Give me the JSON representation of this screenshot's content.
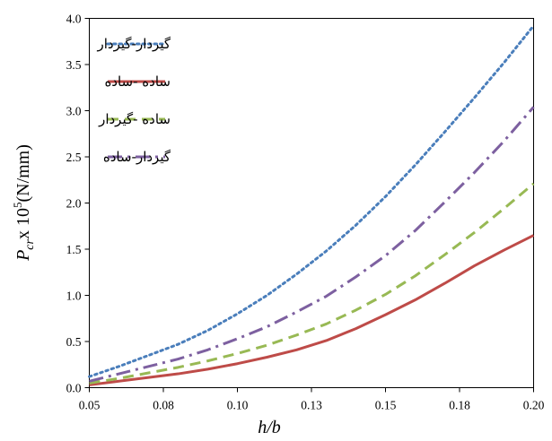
{
  "chart_data": {
    "type": "line",
    "title": "",
    "xlabel": "h/b",
    "ylabel": "Pcr x 10⁵(N/mm)",
    "ylabel_parts": {
      "symbol": "P",
      "subscript": "cr",
      "multiplier": "x 10",
      "exponent": "5",
      "unit": "(N/mm)"
    },
    "xlim": [
      0.05,
      0.2
    ],
    "ylim": [
      0.0,
      4.0
    ],
    "x_ticks": [
      "0.05",
      "0.08",
      "0.10",
      "0.13",
      "0.15",
      "0.18",
      "0.20"
    ],
    "x_tick_values": [
      0.05,
      0.075,
      0.1,
      0.125,
      0.15,
      0.175,
      0.2
    ],
    "y_ticks": [
      "0.0",
      "0.5",
      "1.0",
      "1.5",
      "2.0",
      "2.5",
      "3.0",
      "3.5",
      "4.0"
    ],
    "y_tick_values": [
      0.0,
      0.5,
      1.0,
      1.5,
      2.0,
      2.5,
      3.0,
      3.5,
      4.0
    ],
    "grid": false,
    "legend_position": "top-left",
    "x": [
      0.05,
      0.06,
      0.07,
      0.08,
      0.09,
      0.1,
      0.11,
      0.12,
      0.13,
      0.14,
      0.15,
      0.16,
      0.17,
      0.18,
      0.19,
      0.2
    ],
    "series": [
      {
        "name": "گیردار-گیردار",
        "color": "#4a7ebb",
        "dash": "dotted",
        "values": [
          0.12,
          0.23,
          0.35,
          0.47,
          0.62,
          0.8,
          1.0,
          1.23,
          1.48,
          1.76,
          2.07,
          2.41,
          2.77,
          3.14,
          3.52,
          3.92
        ]
      },
      {
        "name": "ساده -ساده",
        "color": "#be4b48",
        "dash": "solid",
        "values": [
          0.03,
          0.07,
          0.11,
          0.15,
          0.2,
          0.26,
          0.33,
          0.41,
          0.51,
          0.64,
          0.79,
          0.95,
          1.13,
          1.32,
          1.49,
          1.65
        ]
      },
      {
        "name": "ساده -گیردار",
        "color": "#98b954",
        "dash": "dashed",
        "values": [
          0.05,
          0.1,
          0.16,
          0.22,
          0.29,
          0.37,
          0.46,
          0.57,
          0.69,
          0.84,
          1.01,
          1.21,
          1.44,
          1.68,
          1.94,
          2.21
        ]
      },
      {
        "name": "گیردار-ساده",
        "color": "#7d60a0",
        "dash": "dashdot",
        "values": [
          0.07,
          0.15,
          0.23,
          0.31,
          0.41,
          0.53,
          0.66,
          0.82,
          0.99,
          1.2,
          1.43,
          1.7,
          2.01,
          2.33,
          2.67,
          3.04
        ]
      }
    ]
  }
}
